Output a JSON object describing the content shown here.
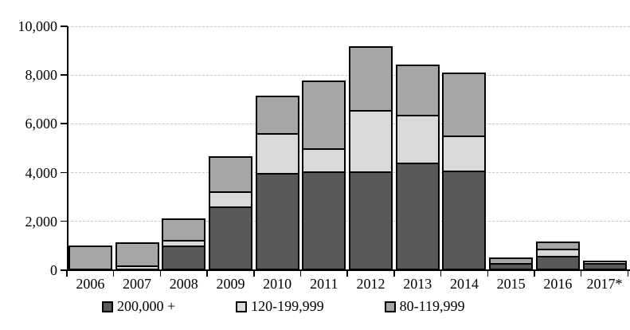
{
  "chart_data": {
    "type": "bar",
    "stacked": true,
    "categories": [
      "2006",
      "2007",
      "2008",
      "2009",
      "2010",
      "2011",
      "2012",
      "2013",
      "2014",
      "2015",
      "2016",
      "2017*"
    ],
    "series": [
      {
        "name": "200,000 +",
        "color": "#595959",
        "values": [
          0,
          0,
          1000,
          2600,
          4000,
          4050,
          4050,
          4400,
          4100,
          300,
          600,
          300
        ]
      },
      {
        "name": "120-199,999",
        "color": "#d9d9d9",
        "values": [
          0,
          200,
          300,
          700,
          1700,
          1000,
          2600,
          2050,
          1500,
          0,
          350,
          150
        ]
      },
      {
        "name": "80-119,999",
        "color": "#a6a6a6",
        "values": [
          1000,
          1000,
          950,
          1500,
          1600,
          2850,
          2650,
          2100,
          2650,
          300,
          350,
          0
        ]
      }
    ],
    "totals": [
      1000,
      1200,
      2250,
      4800,
      7300,
      7900,
      9300,
      8550,
      8250,
      600,
      1300,
      450
    ],
    "title": "",
    "xlabel": "",
    "ylabel": "",
    "ylim": [
      0,
      10000
    ],
    "ytick_values": [
      0,
      2000,
      4000,
      6000,
      8000,
      10000
    ],
    "ytick_labels": [
      "0",
      "2,000",
      "4,000",
      "6,000",
      "8,000",
      "10,000"
    ],
    "grid": "horizontal-dashed",
    "legend_position": "bottom",
    "colors": {
      "axis": "#000000",
      "gridline": "#c8c8c8",
      "bar_border": "#000000",
      "background": "#ffffff"
    }
  }
}
